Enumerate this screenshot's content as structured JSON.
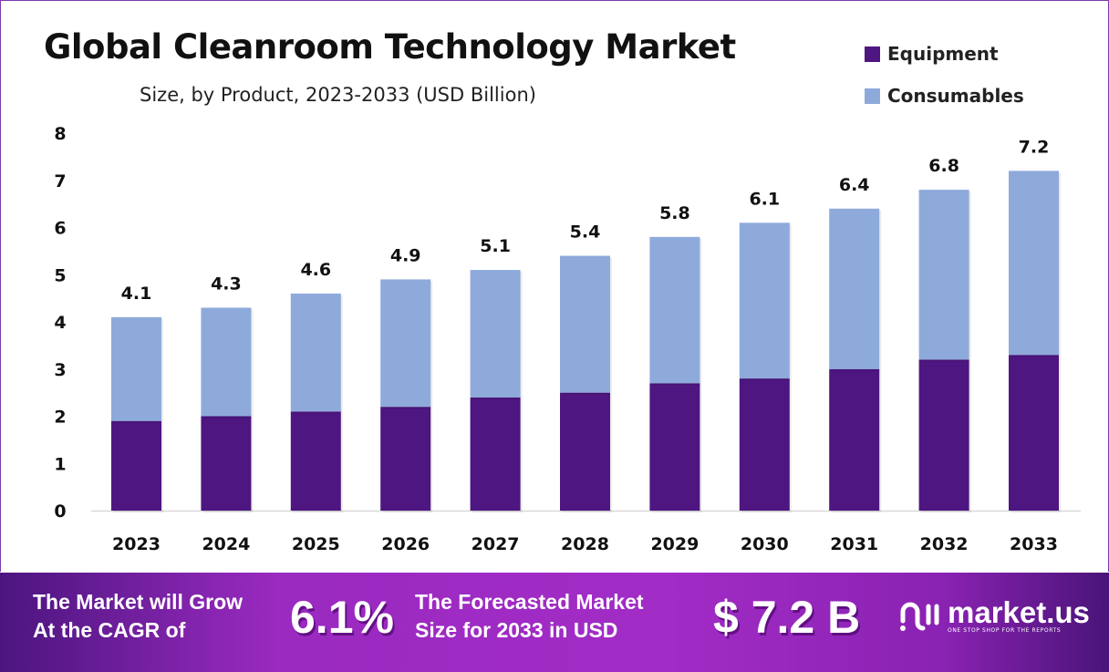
{
  "chart_data": {
    "type": "bar",
    "stacked": true,
    "title": "Global Cleanroom Technology Market",
    "subtitle": "Size, by Product, 2023-2033 (USD Billion)",
    "categories": [
      "2023",
      "2024",
      "2025",
      "2026",
      "2027",
      "2028",
      "2029",
      "2030",
      "2031",
      "2032",
      "2033"
    ],
    "series": [
      {
        "name": "Equipment",
        "color": "#4e1681",
        "values": [
          1.9,
          2.0,
          2.1,
          2.2,
          2.4,
          2.5,
          2.7,
          2.8,
          3.0,
          3.2,
          3.3
        ]
      },
      {
        "name": "Consumables",
        "color": "#8eaadb",
        "values": [
          2.2,
          2.3,
          2.5,
          2.7,
          2.7,
          2.9,
          3.1,
          3.3,
          3.4,
          3.6,
          3.9
        ]
      }
    ],
    "totals": [
      "4.1",
      "4.3",
      "4.6",
      "4.9",
      "5.1",
      "5.4",
      "5.8",
      "6.1",
      "6.4",
      "6.8",
      "7.2"
    ],
    "ylim": [
      0,
      8
    ],
    "yticks": [
      "0",
      "1",
      "2",
      "3",
      "4",
      "5",
      "6",
      "7",
      "8"
    ],
    "grid": false,
    "legend": "top-right"
  },
  "footer": {
    "cagr_text_1": "The Market will Grow",
    "cagr_text_2": "At the CAGR of",
    "cagr_value": "6.1%",
    "forecast_text_1": "The Forecasted Market",
    "forecast_text_2": "Size for 2033 in USD",
    "forecast_value": "$ 7.2 B",
    "logo_name": "market.us",
    "logo_tagline": "ONE STOP SHOP FOR THE REPORTS"
  }
}
